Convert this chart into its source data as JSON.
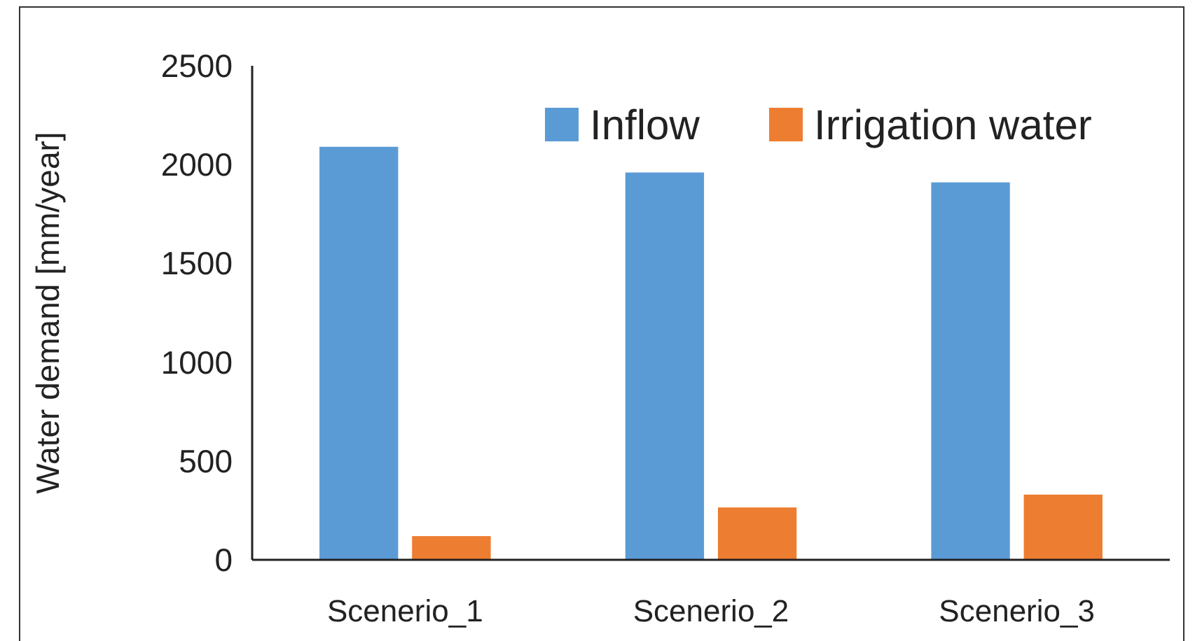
{
  "chart_data": {
    "type": "bar",
    "ylabel": "Water demand [mm/year]",
    "categories": [
      "Scenerio_1",
      "Scenerio_2",
      "Scenerio_3"
    ],
    "series": [
      {
        "name": "Inflow",
        "color": "#5b9bd5",
        "values": [
          2090,
          1960,
          1910
        ]
      },
      {
        "name": "Irrigation water",
        "color": "#ed7d31",
        "values": [
          120,
          265,
          330
        ]
      }
    ],
    "ylim": [
      0,
      2500
    ],
    "yticks": [
      0,
      500,
      1000,
      1500,
      2000,
      2500
    ],
    "grid": false,
    "legend": "top right"
  }
}
